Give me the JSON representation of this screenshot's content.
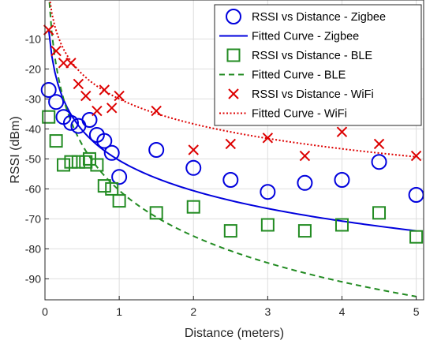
{
  "chart_data": {
    "type": "scatter",
    "xlabel": "Distance (meters)",
    "ylabel": "RSSI (dBm)",
    "xlim": [
      0,
      5.1
    ],
    "ylim": [
      -97,
      3
    ],
    "xticks": [
      0,
      1,
      2,
      3,
      4,
      5
    ],
    "yticks": [
      -90,
      -80,
      -70,
      -60,
      -50,
      -40,
      -30,
      -20,
      -10
    ],
    "grid": true,
    "legend_position": "top-right",
    "series": [
      {
        "name": "RSSI vs Distance - Zigbee",
        "kind": "scatter",
        "marker": "circle",
        "color": "#0000dd",
        "x": [
          0.05,
          0.15,
          0.25,
          0.35,
          0.45,
          0.6,
          0.7,
          0.8,
          0.9,
          1.0,
          1.5,
          2.0,
          2.5,
          3.0,
          3.5,
          4.0,
          4.5,
          5.0
        ],
        "y": [
          -27,
          -31,
          -36,
          -38,
          -39,
          -37,
          -42,
          -44,
          -48,
          -56,
          -47,
          -53,
          -57,
          -61,
          -58,
          -57,
          -51,
          -62
        ]
      },
      {
        "name": "Fitted Curve - Zigbee",
        "kind": "line",
        "dash": "solid",
        "color": "#0000dd",
        "fit": {
          "a": -50.5,
          "b": -14.6,
          "x0": 0.05,
          "x1": 5.0
        }
      },
      {
        "name": "RSSI vs Distance - BLE",
        "kind": "scatter",
        "marker": "square",
        "color": "#228b22",
        "x": [
          0.05,
          0.15,
          0.25,
          0.35,
          0.45,
          0.55,
          0.6,
          0.7,
          0.8,
          0.9,
          1.0,
          1.5,
          2.0,
          2.5,
          3.0,
          3.5,
          4.0,
          4.5,
          5.0
        ],
        "y": [
          -36,
          -44,
          -52,
          -51,
          -51,
          -51,
          -50,
          -52,
          -59,
          -60,
          -64,
          -68,
          -66,
          -74,
          -72,
          -74,
          -72,
          -68,
          -76
        ]
      },
      {
        "name": "Fitted Curve - BLE",
        "kind": "line",
        "dash": "dashed",
        "color": "#228b22",
        "fit": {
          "a": -60.5,
          "b": -22.0,
          "x0": 0.05,
          "x1": 5.0
        }
      },
      {
        "name": "RSSI vs Distance - WiFi",
        "kind": "scatter",
        "marker": "x",
        "color": "#dd0000",
        "x": [
          0.05,
          0.15,
          0.25,
          0.35,
          0.45,
          0.55,
          0.7,
          0.8,
          0.9,
          1.0,
          1.5,
          2.0,
          2.5,
          3.0,
          3.5,
          4.0,
          4.5,
          5.0
        ],
        "y": [
          -7,
          -14,
          -18,
          -18,
          -25,
          -29,
          -34,
          -27,
          -33,
          -29,
          -34,
          -47,
          -45,
          -43,
          -49,
          -41,
          -45,
          -49
        ]
      },
      {
        "name": "Fitted Curve - WiFi",
        "kind": "line",
        "dash": "dotted",
        "color": "#dd0000",
        "fit": {
          "a": -30.0,
          "b": -12.0,
          "x0": 0.05,
          "x1": 5.0
        }
      }
    ]
  }
}
